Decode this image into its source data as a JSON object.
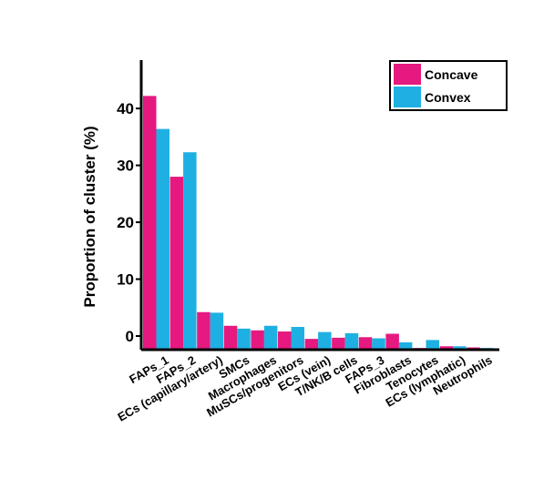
{
  "chart_data": {
    "type": "bar",
    "title": "",
    "xlabel": "",
    "ylabel": "Proportion of cluster (%)",
    "ylim": [
      -2.4,
      48.5
    ],
    "yticks": [
      0,
      10,
      20,
      30,
      40
    ],
    "grid": false,
    "legend_position": "top-right",
    "categories": [
      "FAPs_1",
      "FAPs_2",
      "ECs (capillary/artery)",
      "SMCs",
      "Macrophages",
      "MuSCs/progenitors",
      "ECs (vein)",
      "T/NK/B cells",
      "FAPs_3",
      "Fibroblasts",
      "Tenocytes",
      "ECs (lymphatic)",
      "Neutrophils"
    ],
    "series": [
      {
        "name": "Concave",
        "color": "#e5197f",
        "values": [
          42.2,
          28.0,
          4.2,
          1.8,
          1.0,
          0.8,
          -0.5,
          -0.3,
          -0.2,
          0.4,
          -2.1,
          -1.8,
          -2.0
        ]
      },
      {
        "name": "Convex",
        "color": "#1fb0e3",
        "values": [
          36.4,
          32.3,
          4.1,
          1.3,
          1.8,
          1.6,
          0.7,
          0.5,
          -0.4,
          -1.1,
          -0.7,
          -1.8,
          -2.1
        ]
      }
    ]
  }
}
